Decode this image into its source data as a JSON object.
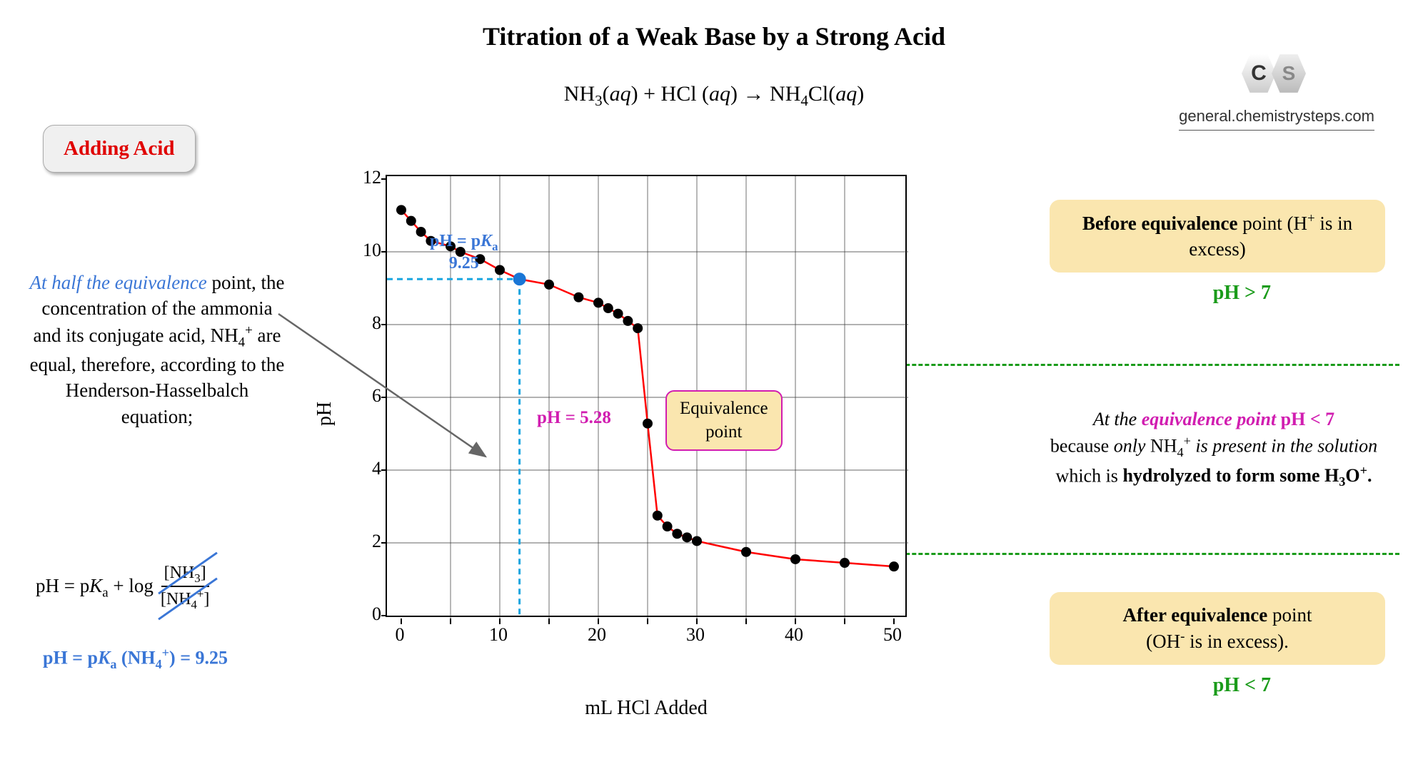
{
  "title": "Titration of a Weak Base by a Strong Acid",
  "equation": "NH₃(aq) + HCl (aq) → NH₄Cl(aq)",
  "adding_acid_label": "Adding Acid",
  "left_panel": {
    "head": "At half the equivalence",
    "body": "point, the concentration of the ammonia and its conjugate acid, NH₄⁺ are equal, therefore, according to the Henderson-Hasselbalch equation;",
    "hh_prefix": "pH = p",
    "hh_K": "K",
    "hh_a": "a",
    "hh_plus": " + log",
    "frac_num": "[NH₃]",
    "frac_den": "[NH₄⁺]",
    "pka_result": "pH = pKₐ (NH₄⁺) = 9.25"
  },
  "logo": {
    "c": "C",
    "s": "S",
    "url": "general.chemistrysteps.com"
  },
  "right": {
    "before_bold": "Before equivalence",
    "before_rest": "point (H⁺ is in excess)",
    "ph_gt7": "pH > 7",
    "mid": {
      "pre": "At the ",
      "eqp": "equivalence point",
      "ph": " pH < 7",
      "rest1": "because ",
      "only": "only",
      "rest2": " NH₄⁺ ",
      "rest3": "is present in the solution",
      "rest4": " which is ",
      "hydro": "hydrolyzed to form some H₃O⁺."
    },
    "after_bold": "After equivalence",
    "after_rest": " point (OH⁻ is in excess).",
    "ph_lt7": "pH < 7"
  },
  "chart": {
    "type": "scatter-line",
    "xlabel": "mL HCl Added",
    "ylabel": "pH",
    "xlim": [
      0,
      50
    ],
    "ylim": [
      0,
      12
    ],
    "xtick_step": 5,
    "ytick_step": 2,
    "xtick_labels_step": 10,
    "background_color": "#ffffff",
    "grid_color": "#333333",
    "line_color": "#ff0000",
    "line_width": 2.5,
    "marker_color": "#000000",
    "marker_radius": 7,
    "half_eq_marker_color": "#1a76d6",
    "half_eq_marker_x": 12,
    "half_eq_marker_y": 9.25,
    "dash_color": "#1aa6e0",
    "data": [
      {
        "x": 0,
        "y": 11.15
      },
      {
        "x": 1,
        "y": 10.85
      },
      {
        "x": 2,
        "y": 10.55
      },
      {
        "x": 3,
        "y": 10.3
      },
      {
        "x": 5,
        "y": 10.15
      },
      {
        "x": 6,
        "y": 10.0
      },
      {
        "x": 8,
        "y": 9.8
      },
      {
        "x": 10,
        "y": 9.5
      },
      {
        "x": 12,
        "y": 9.25
      },
      {
        "x": 15,
        "y": 9.1
      },
      {
        "x": 18,
        "y": 8.75
      },
      {
        "x": 20,
        "y": 8.6
      },
      {
        "x": 21,
        "y": 8.45
      },
      {
        "x": 22,
        "y": 8.3
      },
      {
        "x": 23,
        "y": 8.1
      },
      {
        "x": 24,
        "y": 7.9
      },
      {
        "x": 25,
        "y": 5.28
      },
      {
        "x": 26,
        "y": 2.75
      },
      {
        "x": 27,
        "y": 2.45
      },
      {
        "x": 28,
        "y": 2.25
      },
      {
        "x": 29,
        "y": 2.15
      },
      {
        "x": 30,
        "y": 2.05
      },
      {
        "x": 35,
        "y": 1.75
      },
      {
        "x": 40,
        "y": 1.55
      },
      {
        "x": 45,
        "y": 1.45
      },
      {
        "x": 50,
        "y": 1.35
      }
    ],
    "pka_label": {
      "line1": "pH = pKₐ",
      "line2": "9.25"
    },
    "pH528_label": "pH = 5.28",
    "eq_box": {
      "l1": "Equivalence",
      "l2": "point"
    }
  },
  "colors": {
    "red": "#e00000",
    "blue": "#3a76d6",
    "magenta": "#d11db0",
    "green": "#1a9b1a",
    "boxbg": "#fae6af"
  }
}
